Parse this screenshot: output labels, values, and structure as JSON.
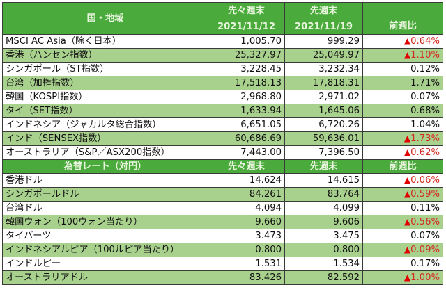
{
  "indices": {
    "header": {
      "region": "国・地域",
      "prev_prev_week": "先々週末",
      "prev_prev_date": "2021/11/12",
      "prev_week": "先週末",
      "prev_date": "2021/11/19",
      "change": "前週比"
    },
    "rows": [
      {
        "name": "MSCI AC Asia（除く日本）",
        "prev_prev": "1,005.70",
        "prev": "999.29",
        "change": "0.64%",
        "negative": true
      },
      {
        "name": "香港（ハンセン指数）",
        "prev_prev": "25,327.97",
        "prev": "25,049.97",
        "change": "1.10%",
        "negative": true
      },
      {
        "name": "シンガポール（ST指数）",
        "prev_prev": "3,228.45",
        "prev": "3,232.34",
        "change": "0.12%",
        "negative": false
      },
      {
        "name": "台湾（加権指数）",
        "prev_prev": "17,518.13",
        "prev": "17,818.31",
        "change": "1.71%",
        "negative": false
      },
      {
        "name": "韓国（KOSPI指数）",
        "prev_prev": "2,968.80",
        "prev": "2,971.02",
        "change": "0.07%",
        "negative": false
      },
      {
        "name": "タイ（SET指数）",
        "prev_prev": "1,633.94",
        "prev": "1,645.06",
        "change": "0.68%",
        "negative": false
      },
      {
        "name": "インドネシア（ジャカルタ総合指数）",
        "prev_prev": "6,651.05",
        "prev": "6,720.26",
        "change": "1.04%",
        "negative": false
      },
      {
        "name": "インド（SENSEX指数）",
        "prev_prev": "60,686.69",
        "prev": "59,636.01",
        "change": "1.73%",
        "negative": true
      },
      {
        "name": "オーストラリア（S&P／ASX200指数）",
        "prev_prev": "7,443.00",
        "prev": "7,396.50",
        "change": "0.62%",
        "negative": true
      }
    ]
  },
  "fx": {
    "header": {
      "region": "為替レート（対円）",
      "prev_prev_week": "先々週末",
      "prev_week": "先週末",
      "change": "前週比"
    },
    "rows": [
      {
        "name": "香港ドル",
        "prev_prev": "14.624",
        "prev": "14.615",
        "change": "0.06%",
        "negative": true
      },
      {
        "name": "シンガポールドル",
        "prev_prev": "84.261",
        "prev": "83.764",
        "change": "0.59%",
        "negative": true
      },
      {
        "name": "台湾ドル",
        "prev_prev": "4.094",
        "prev": "4.099",
        "change": "0.11%",
        "negative": false
      },
      {
        "name": "韓国ウォン（100ウォン当たり）",
        "prev_prev": "9.660",
        "prev": "9.606",
        "change": "0.56%",
        "negative": true
      },
      {
        "name": "タイバーツ",
        "prev_prev": "3.473",
        "prev": "3.475",
        "change": "0.07%",
        "negative": false
      },
      {
        "name": "インドネシアルピア（100ルピア当たり）",
        "prev_prev": "0.800",
        "prev": "0.800",
        "change": "0.09%",
        "negative": true
      },
      {
        "name": "インドルピー",
        "prev_prev": "1.531",
        "prev": "1.534",
        "change": "0.17%",
        "negative": false
      },
      {
        "name": "オーストラリアドル",
        "prev_prev": "83.426",
        "prev": "82.592",
        "change": "1.00%",
        "negative": true
      }
    ]
  },
  "symbols": {
    "down_triangle": "▲"
  },
  "colors": {
    "header_green": "#4aaa3c",
    "row_alt_green": "#a9d18e",
    "negative_red": "#d22a1e"
  }
}
